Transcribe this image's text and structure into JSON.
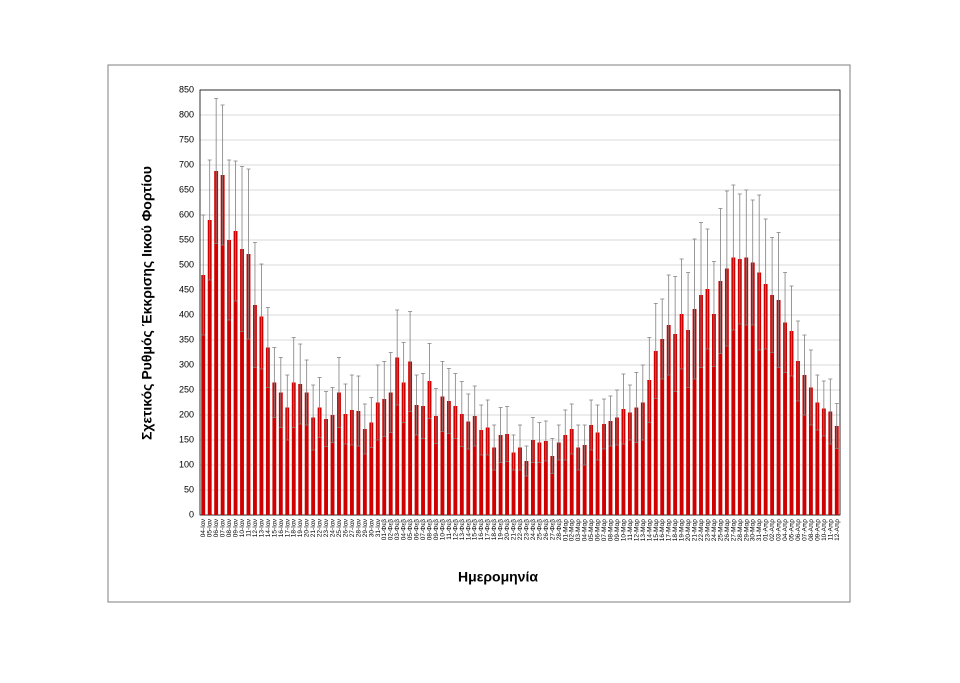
{
  "chart_data": {
    "type": "bar",
    "y_label": "Σχετικός Ρυθμός Έκκρισης Ιικού Φορτίου",
    "x_label": "Ημερομηνία",
    "color": "#d00000",
    "error_color": "#808080",
    "grid": true,
    "ylim": [
      0,
      850
    ],
    "yticks": [
      0,
      50,
      100,
      150,
      200,
      250,
      300,
      350,
      400,
      450,
      500,
      550,
      600,
      650,
      700,
      750,
      800,
      850
    ],
    "categories": [
      "04-Ιαν",
      "05-Ιαν",
      "06-Ιαν",
      "07-Ιαν",
      "08-Ιαν",
      "09-Ιαν",
      "10-Ιαν",
      "11-Ιαν",
      "12-Ιαν",
      "13-Ιαν",
      "14-Ιαν",
      "15-Ιαν",
      "16-Ιαν",
      "17-Ιαν",
      "18-Ιαν",
      "19-Ιαν",
      "20-Ιαν",
      "21-Ιαν",
      "22-Ιαν",
      "23-Ιαν",
      "24-Ιαν",
      "25-Ιαν",
      "26-Ιαν",
      "27-Ιαν",
      "28-Ιαν",
      "29-Ιαν",
      "30-Ιαν",
      "31-Ιαν",
      "01-Φεβ",
      "02-Φεβ",
      "03-Φεβ",
      "04-Φεβ",
      "05-Φεβ",
      "06-Φεβ",
      "07-Φεβ",
      "08-Φεβ",
      "09-Φεβ",
      "10-Φεβ",
      "11-Φεβ",
      "12-Φεβ",
      "13-Φεβ",
      "14-Φεβ",
      "15-Φεβ",
      "16-Φεβ",
      "17-Φεβ",
      "18-Φεβ",
      "19-Φεβ",
      "20-Φεβ",
      "21-Φεβ",
      "22-Φεβ",
      "23-Φεβ",
      "24-Φεβ",
      "25-Φεβ",
      "26-Φεβ",
      "27-Φεβ",
      "28-Φεβ",
      "01-Μαρ",
      "02-Μαρ",
      "03-Μαρ",
      "04-Μαρ",
      "05-Μαρ",
      "06-Μαρ",
      "07-Μαρ",
      "08-Μαρ",
      "09-Μαρ",
      "10-Μαρ",
      "11-Μαρ",
      "12-Μαρ",
      "13-Μαρ",
      "14-Μαρ",
      "15-Μαρ",
      "16-Μαρ",
      "17-Μαρ",
      "18-Μαρ",
      "19-Μαρ",
      "20-Μαρ",
      "21-Μαρ",
      "22-Μαρ",
      "23-Μαρ",
      "24-Μαρ",
      "25-Μαρ",
      "26-Μαρ",
      "27-Μαρ",
      "28-Μαρ",
      "29-Μαρ",
      "30-Μαρ",
      "31-Μαρ",
      "01-Απρ",
      "02-Απρ",
      "03-Απρ",
      "04-Απρ",
      "05-Απρ",
      "06-Απρ",
      "07-Απρ",
      "08-Απρ",
      "09-Απρ",
      "10-Απρ",
      "11-Απρ",
      "12-Απρ"
    ],
    "values": [
      480,
      590,
      688,
      680,
      550,
      568,
      532,
      522,
      420,
      397,
      335,
      265,
      245,
      215,
      265,
      262,
      245,
      195,
      215,
      192,
      200,
      245,
      202,
      210,
      208,
      172,
      185,
      225,
      232,
      245,
      315,
      265,
      307,
      220,
      218,
      268,
      198,
      237,
      228,
      218,
      202,
      187,
      198,
      170,
      175,
      135,
      160,
      162,
      125,
      135,
      108,
      150,
      145,
      148,
      118,
      145,
      160,
      172,
      135,
      140,
      180,
      165,
      182,
      188,
      195,
      212,
      205,
      215,
      225,
      270,
      328,
      352,
      380,
      362,
      402,
      370,
      412,
      440,
      452,
      402,
      468,
      493,
      515,
      512,
      515,
      505,
      485,
      462,
      440,
      430,
      385,
      368,
      308,
      280,
      255,
      225,
      213,
      207,
      178
    ],
    "errors": [
      120,
      120,
      145,
      140,
      160,
      140,
      165,
      170,
      125,
      105,
      80,
      70,
      70,
      65,
      90,
      80,
      65,
      65,
      60,
      55,
      55,
      70,
      60,
      70,
      70,
      50,
      50,
      75,
      75,
      80,
      95,
      80,
      100,
      60,
      65,
      75,
      55,
      70,
      65,
      65,
      65,
      55,
      60,
      50,
      55,
      45,
      55,
      55,
      35,
      45,
      30,
      45,
      40,
      40,
      35,
      35,
      50,
      50,
      45,
      40,
      50,
      55,
      50,
      50,
      55,
      70,
      55,
      70,
      75,
      85,
      95,
      80,
      100,
      115,
      110,
      115,
      140,
      145,
      120,
      105,
      145,
      155,
      145,
      130,
      135,
      125,
      155,
      130,
      115,
      135,
      100,
      90,
      80,
      80,
      75,
      55,
      55,
      65,
      45
    ]
  }
}
